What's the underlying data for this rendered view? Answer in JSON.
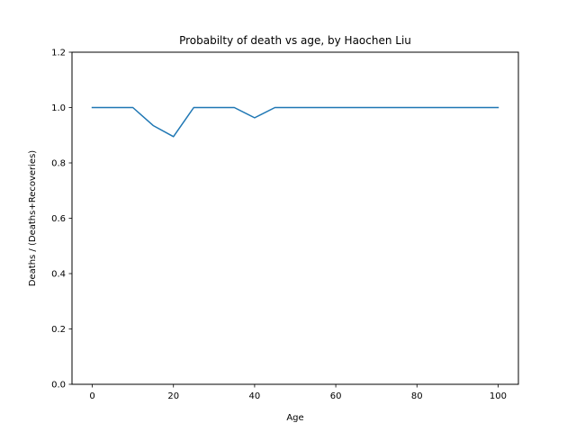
{
  "chart_data": {
    "type": "line",
    "title": "Probabilty of death vs age, by Haochen Liu",
    "xlabel": "Age",
    "ylabel": "Deaths / (Deaths+Recoveries)",
    "xlim": [
      -5,
      105
    ],
    "ylim": [
      0,
      1.2
    ],
    "xticks": [
      0,
      20,
      40,
      60,
      80,
      100
    ],
    "xtick_labels": [
      "0",
      "20",
      "40",
      "60",
      "80",
      "100"
    ],
    "yticks": [
      0,
      0.2,
      0.4,
      0.6,
      0.8,
      1.0,
      1.2
    ],
    "ytick_labels": [
      "0.0",
      "0.2",
      "0.4",
      "0.6",
      "0.8",
      "1.0",
      "1.2"
    ],
    "grid": false,
    "series": [
      {
        "color": "#1f77b4",
        "x": [
          0,
          5,
          10,
          15,
          20,
          25,
          30,
          35,
          40,
          45,
          50,
          55,
          60,
          65,
          70,
          75,
          80,
          85,
          90,
          95,
          100
        ],
        "y": [
          1.0,
          1.0,
          1.0,
          0.935,
          0.895,
          1.0,
          1.0,
          1.0,
          0.963,
          1.0,
          1.0,
          1.0,
          1.0,
          1.0,
          1.0,
          1.0,
          1.0,
          1.0,
          1.0,
          1.0,
          1.0
        ]
      }
    ]
  }
}
